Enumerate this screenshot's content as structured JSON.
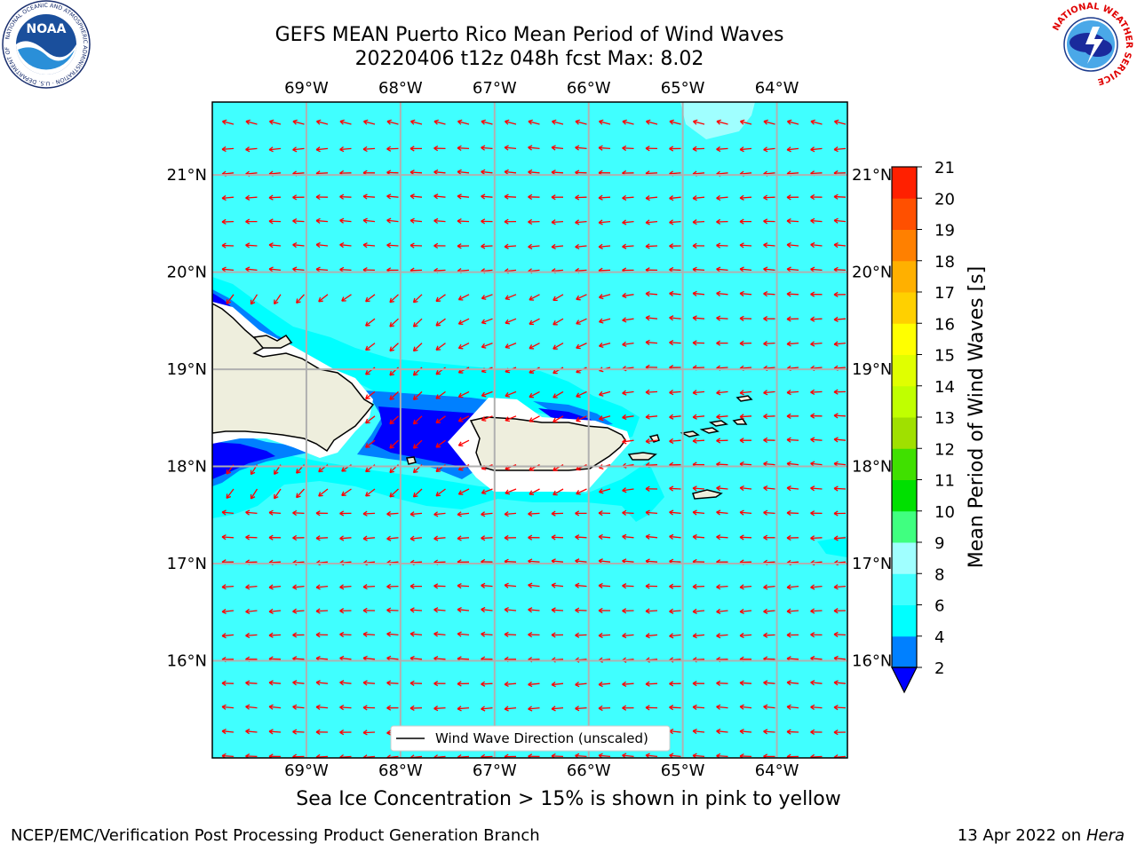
{
  "header": {
    "title_line1": "GEFS MEAN Puerto Rico Mean Period of Wind Waves",
    "title_line2": "20220406 t12z 048h fcst   Max: 8.02"
  },
  "map": {
    "lon_labels": [
      "69°W",
      "68°W",
      "67°W",
      "66°W",
      "65°W",
      "64°W"
    ],
    "lat_labels": [
      "21°N",
      "20°N",
      "19°N",
      "18°N",
      "17°N",
      "16°N"
    ],
    "lon_values": [
      -69,
      -68,
      -67,
      -66,
      -65,
      -64
    ],
    "lat_values": [
      21,
      20,
      19,
      18,
      17,
      16
    ],
    "extent": {
      "lon_min": -70,
      "lon_max": -63.25,
      "lat_min": 15,
      "lat_max": 21.75
    },
    "legend_label": "Wind Wave Direction (unscaled)",
    "ocean_color": "#40ffff",
    "land_color": "#eeeedd",
    "arrow_color": "#ff0000"
  },
  "colorbar": {
    "label": "Mean Period of Wind Waves [s]",
    "ticks": [
      "2",
      "4",
      "6",
      "8",
      "9",
      "10",
      "11",
      "12",
      "13",
      "14",
      "15",
      "16",
      "17",
      "18",
      "19",
      "20",
      "21"
    ],
    "colors": [
      "#0000ff",
      "#0080ff",
      "#00ffff",
      "#40ffff",
      "#a0ffff",
      "#40ff80",
      "#00e000",
      "#40e000",
      "#a0e000",
      "#c0ff00",
      "#e0ff00",
      "#ffff00",
      "#ffd000",
      "#ffb000",
      "#ff8000",
      "#ff5000",
      "#ff2000",
      "#ff0000"
    ]
  },
  "logos": {
    "noaa": {
      "text": "NOAA",
      "ring_text": "NATIONAL OCEANIC AND ATMOSPHERIC ADMINISTRATION · U.S. DEPARTMENT OF COMMERCE"
    },
    "nws": {
      "ring_text": "NATIONAL WEATHER SERVICE"
    }
  },
  "footer": {
    "note": "Sea Ice Concentration > 15% is shown in pink to yellow",
    "credit": "NCEP/EMC/Verification Post Processing Product Generation Branch",
    "date": "13 Apr 2022 on",
    "host": "Hera"
  }
}
